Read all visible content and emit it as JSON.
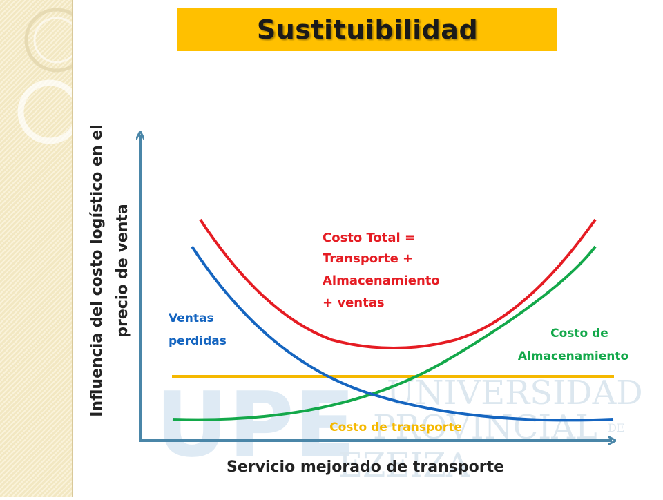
{
  "title": "Sustituibilidad",
  "watermark": {
    "letters": "UPE",
    "line1": "UNIVERSIDAD",
    "line2": "PROVINCIAL",
    "line3": "EZEIZA",
    "small": "DE"
  },
  "axes": {
    "y_label_line1": "Influencia del costo logístico en el",
    "y_label_line2": "precio de venta",
    "x_label": "Servicio mejorado de transporte"
  },
  "curves": {
    "total": {
      "label_lines": [
        "Costo Total =",
        "Transporte +",
        "Almacenamiento",
        "+ ventas"
      ],
      "color": "#e51c23"
    },
    "lost_sales": {
      "label_lines": [
        "Ventas",
        "perdidas"
      ],
      "color": "#1565c0"
    },
    "storage": {
      "label_lines": [
        "Costo de",
        "Almacenamiento"
      ],
      "color": "#13a84a"
    },
    "transport": {
      "label": "Costo de transporte",
      "color": "#f5b800"
    }
  },
  "colors": {
    "axis": "#4a86a8",
    "title_bg": "#ffc000"
  }
}
